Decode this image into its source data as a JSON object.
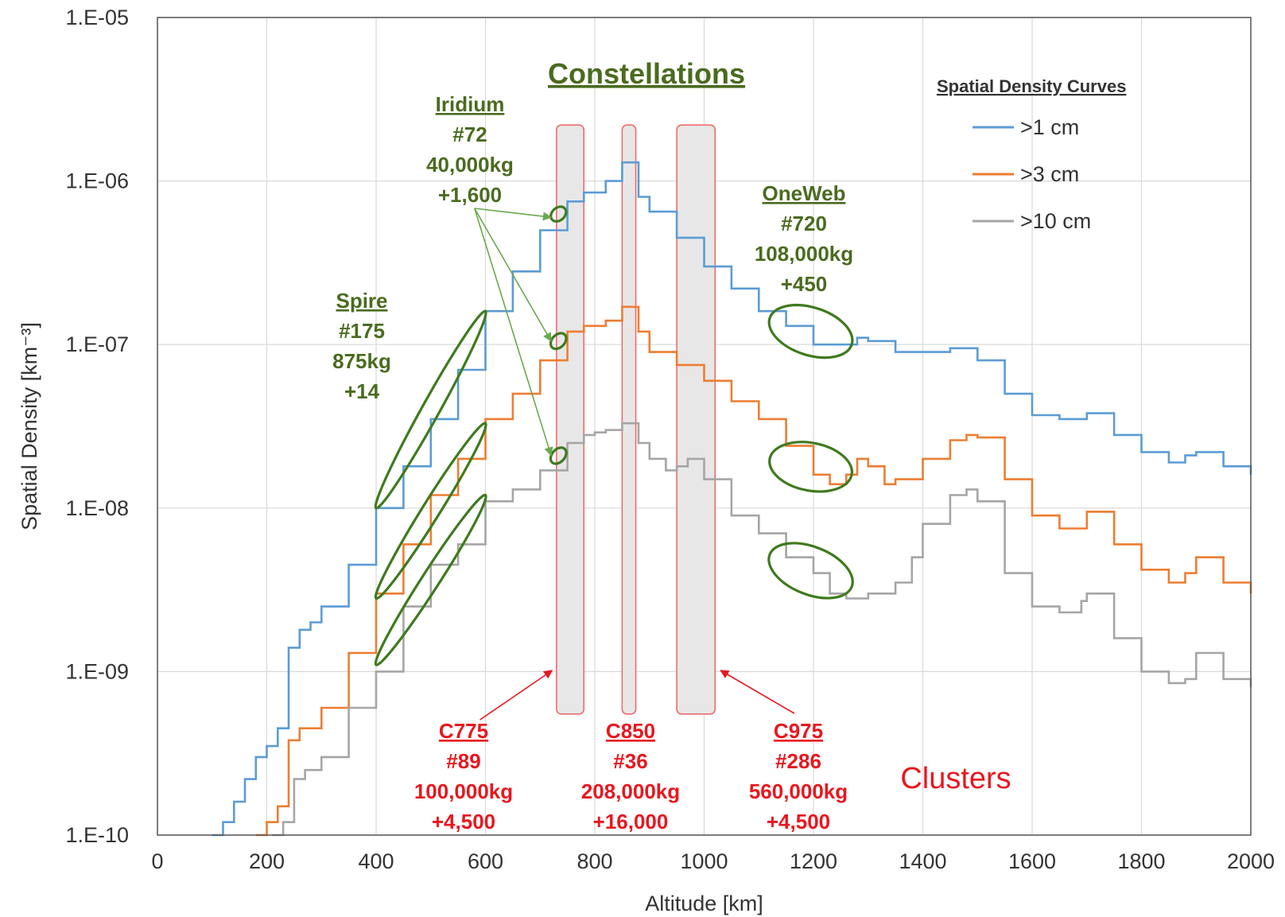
{
  "chart_data": {
    "type": "line",
    "xlabel": "Altitude [km]",
    "ylabel": "Spatial Density [km⁻³]",
    "xlim": [
      0,
      2000
    ],
    "ylim": [
      1e-10,
      1e-05
    ],
    "yscale": "log",
    "grid": true,
    "x_ticks": [
      "0",
      "200",
      "400",
      "600",
      "800",
      "1000",
      "1200",
      "1400",
      "1600",
      "1800",
      "2000"
    ],
    "y_ticks": [
      "1.E-10",
      "1.E-09",
      "1.E-08",
      "1.E-07",
      "1.E-06",
      "1.E-05"
    ],
    "legend": {
      "title": "Spatial Density Curves",
      "placement": "top-right",
      "entries": [
        ">1 cm",
        ">3 cm",
        ">10 cm"
      ]
    },
    "series": [
      {
        "name": ">1 cm",
        "color": "#5b9bd5",
        "x": [
          100,
          120,
          140,
          160,
          180,
          200,
          220,
          240,
          260,
          280,
          300,
          350,
          400,
          450,
          500,
          550,
          600,
          650,
          700,
          750,
          780,
          800,
          820,
          850,
          880,
          900,
          950,
          1000,
          1050,
          1100,
          1150,
          1200,
          1230,
          1280,
          1300,
          1350,
          1400,
          1450,
          1480,
          1500,
          1550,
          1600,
          1650,
          1700,
          1750,
          1800,
          1850,
          1880,
          1900,
          1950,
          2000
        ],
        "values": [
          1e-10,
          1.2e-10,
          1.6e-10,
          2.2e-10,
          3e-10,
          3.5e-10,
          4.5e-10,
          1.4e-09,
          1.8e-09,
          2e-09,
          2.5e-09,
          4.5e-09,
          1e-08,
          1.8e-08,
          3.5e-08,
          7e-08,
          1.6e-07,
          2.8e-07,
          5e-07,
          7.5e-07,
          8.5e-07,
          8.5e-07,
          1e-06,
          1.3e-06,
          8e-07,
          6.5e-07,
          4.5e-07,
          3e-07,
          2.2e-07,
          1.6e-07,
          1.3e-07,
          1e-07,
          1e-07,
          1.1e-07,
          1.05e-07,
          9e-08,
          9e-08,
          9.5e-08,
          9.5e-08,
          8e-08,
          5e-08,
          3.7e-08,
          3.5e-08,
          3.8e-08,
          2.8e-08,
          2.2e-08,
          1.9e-08,
          2.1e-08,
          2.2e-08,
          1.8e-08,
          1.6e-08
        ]
      },
      {
        "name": ">3 cm",
        "color": "#ed7d31",
        "x": [
          180,
          200,
          220,
          240,
          260,
          300,
          350,
          400,
          450,
          500,
          550,
          600,
          650,
          700,
          750,
          780,
          800,
          820,
          850,
          880,
          900,
          950,
          1000,
          1050,
          1100,
          1150,
          1200,
          1230,
          1260,
          1280,
          1300,
          1330,
          1350,
          1400,
          1450,
          1480,
          1500,
          1550,
          1600,
          1650,
          1700,
          1750,
          1800,
          1850,
          1880,
          1900,
          1950,
          2000
        ],
        "values": [
          1e-10,
          1.2e-10,
          1.5e-10,
          3.8e-10,
          4.5e-10,
          6e-10,
          1.3e-09,
          3e-09,
          6e-09,
          1.2e-08,
          2e-08,
          3.5e-08,
          5e-08,
          8e-08,
          1.2e-07,
          1.3e-07,
          1.3e-07,
          1.4e-07,
          1.7e-07,
          1.2e-07,
          9e-08,
          7.5e-08,
          6e-08,
          4.5e-08,
          3.5e-08,
          2.4e-08,
          1.6e-08,
          1.4e-08,
          1.6e-08,
          2e-08,
          1.8e-08,
          1.4e-08,
          1.5e-08,
          2e-08,
          2.6e-08,
          2.8e-08,
          2.7e-08,
          1.5e-08,
          9e-09,
          7.5e-09,
          9.5e-09,
          6e-09,
          4.2e-09,
          3.5e-09,
          4e-09,
          5e-09,
          3.5e-09,
          3e-09
        ]
      },
      {
        "name": ">10 cm",
        "color": "#a5a5a5",
        "x": [
          210,
          230,
          250,
          270,
          300,
          350,
          400,
          450,
          500,
          550,
          600,
          650,
          700,
          750,
          780,
          800,
          820,
          850,
          880,
          900,
          930,
          950,
          970,
          1000,
          1050,
          1100,
          1150,
          1200,
          1230,
          1260,
          1300,
          1350,
          1380,
          1400,
          1450,
          1480,
          1500,
          1550,
          1600,
          1650,
          1690,
          1700,
          1750,
          1800,
          1850,
          1880,
          1900,
          1950,
          2000
        ],
        "values": [
          1e-10,
          1.2e-10,
          2.2e-10,
          2.5e-10,
          3e-10,
          6e-10,
          1e-09,
          2.5e-09,
          4.5e-09,
          6e-09,
          1.1e-08,
          1.3e-08,
          1.7e-08,
          2.5e-08,
          2.8e-08,
          2.9e-08,
          3e-08,
          3.3e-08,
          2.5e-08,
          2e-08,
          1.7e-08,
          1.8e-08,
          2e-08,
          1.5e-08,
          9e-09,
          7e-09,
          5e-09,
          4e-09,
          3e-09,
          2.8e-09,
          3e-09,
          3.5e-09,
          5e-09,
          8e-09,
          1.2e-08,
          1.3e-08,
          1.1e-08,
          4e-09,
          2.5e-09,
          2.3e-09,
          2.7e-09,
          3e-09,
          1.6e-09,
          1e-09,
          8.5e-10,
          9e-10,
          1.3e-09,
          9e-10,
          8e-10
        ]
      }
    ],
    "clusters": [
      {
        "x_range": [
          730,
          780
        ],
        "label": "C775",
        "count": "#89",
        "mass": "100,000kg",
        "delta": "+4,500"
      },
      {
        "x_range": [
          850,
          875
        ],
        "label": "C850",
        "count": "#36",
        "mass": "208,000kg",
        "delta": "+16,000"
      },
      {
        "x_range": [
          950,
          1020
        ],
        "label": "C975",
        "count": "#286",
        "mass": "560,000kg",
        "delta": "+4,500"
      }
    ],
    "annotations": {
      "constellations_title": "Constellations",
      "clusters_title": "Clusters",
      "iridium": {
        "name": "Iridium",
        "lines": [
          "#72",
          "40,000kg",
          "+1,600"
        ]
      },
      "spire": {
        "name": "Spire",
        "lines": [
          "#175",
          "875kg",
          "+14"
        ]
      },
      "oneweb": {
        "name": "OneWeb",
        "lines": [
          "#720",
          "108,000kg",
          "+450"
        ]
      }
    }
  }
}
